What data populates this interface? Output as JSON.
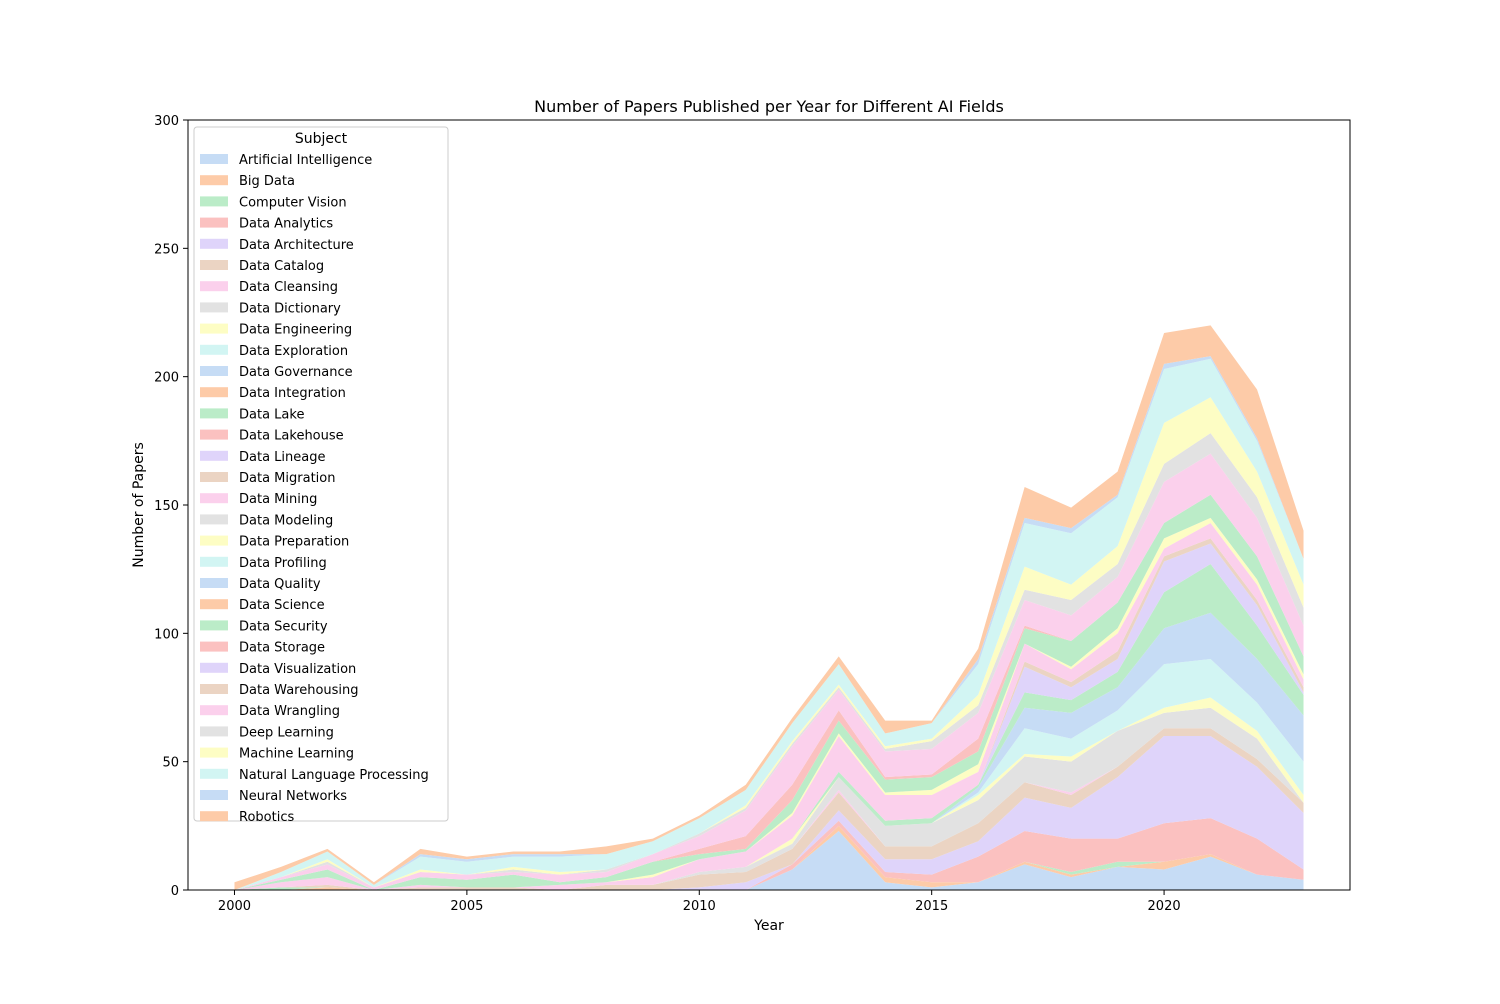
{
  "chart_data": {
    "type": "area",
    "stacked": true,
    "title": "Number of Papers Published per Year for Different AI Fields",
    "xlabel": "Year",
    "ylabel": "Number of Papers",
    "xlim": [
      1999,
      2024
    ],
    "ylim": [
      0,
      300
    ],
    "xticks": [
      2000,
      2005,
      2010,
      2015,
      2020
    ],
    "yticks": [
      0,
      50,
      100,
      150,
      200,
      250,
      300
    ],
    "grid": false,
    "legend": {
      "title": "Subject",
      "position": "upper-left"
    },
    "x": [
      2000,
      2001,
      2002,
      2003,
      2004,
      2005,
      2006,
      2007,
      2008,
      2009,
      2010,
      2011,
      2012,
      2013,
      2014,
      2015,
      2016,
      2017,
      2018,
      2019,
      2020,
      2021,
      2022,
      2023
    ],
    "series": [
      {
        "name": "Artificial Intelligence",
        "color": "#c6dcf5",
        "values": [
          0,
          0,
          0,
          0,
          0,
          0,
          0,
          0,
          0,
          0,
          0,
          0,
          8,
          23,
          3,
          1,
          3,
          10,
          5,
          9,
          8,
          13,
          6,
          4
        ]
      },
      {
        "name": "Big Data",
        "color": "#fdcba8",
        "values": [
          0,
          0,
          1,
          0,
          0,
          0,
          0,
          0,
          0,
          0,
          0,
          0,
          0,
          2,
          2,
          2,
          0,
          1,
          1,
          0,
          3,
          1,
          0,
          0
        ]
      },
      {
        "name": "Computer Vision",
        "color": "#bbecc8",
        "values": [
          0,
          1,
          0,
          0,
          0,
          0,
          0,
          0,
          0,
          0,
          0,
          0,
          0,
          0,
          0,
          0,
          0,
          0,
          1,
          2,
          0,
          0,
          0,
          0
        ]
      },
      {
        "name": "Data Analytics",
        "color": "#fbc1c0",
        "values": [
          0,
          0,
          0,
          0,
          0,
          0,
          0,
          0,
          0,
          0,
          0,
          0,
          2,
          2,
          2,
          3,
          10,
          12,
          13,
          9,
          15,
          14,
          14,
          4
        ]
      },
      {
        "name": "Data Architecture",
        "color": "#dfd4fa",
        "values": [
          0,
          0,
          0,
          0,
          0,
          0,
          0,
          0,
          0,
          0,
          1,
          3,
          0,
          4,
          5,
          6,
          6,
          13,
          12,
          24,
          34,
          32,
          28,
          22
        ]
      },
      {
        "name": "Data Catalog",
        "color": "#ebd4c3",
        "values": [
          0,
          0,
          1,
          0,
          1,
          1,
          1,
          0,
          2,
          2,
          5,
          4,
          6,
          7,
          5,
          5,
          7,
          6,
          5,
          4,
          3,
          3,
          3,
          4
        ]
      },
      {
        "name": "Data Cleansing",
        "color": "#fbd0ec",
        "values": [
          0,
          0,
          0,
          0,
          0,
          0,
          0,
          0,
          0,
          0,
          0,
          0,
          0,
          1,
          0,
          0,
          0,
          0,
          1,
          0,
          0,
          0,
          0,
          0
        ]
      },
      {
        "name": "Data Dictionary",
        "color": "#e2e2e2",
        "values": [
          0,
          0,
          0,
          0,
          0,
          0,
          0,
          0,
          0,
          0,
          1,
          2,
          2,
          5,
          8,
          9,
          9,
          10,
          12,
          14,
          6,
          8,
          8,
          0
        ]
      },
      {
        "name": "Data Engineering",
        "color": "#fdfdc4",
        "values": [
          0,
          0,
          0,
          0,
          0,
          0,
          0,
          0,
          0,
          0,
          0,
          0,
          2,
          0,
          0,
          0,
          2,
          1,
          2,
          0,
          2,
          4,
          3,
          3
        ]
      },
      {
        "name": "Data Exploration",
        "color": "#d2f5f3",
        "values": [
          0,
          0,
          0,
          0,
          0,
          0,
          0,
          0,
          0,
          0,
          0,
          0,
          0,
          0,
          0,
          0,
          1,
          10,
          7,
          8,
          17,
          15,
          11,
          13
        ]
      },
      {
        "name": "Data Governance",
        "color": "#c6dcf5",
        "values": [
          0,
          0,
          0,
          0,
          0,
          0,
          0,
          0,
          0,
          0,
          0,
          0,
          0,
          0,
          0,
          0,
          2,
          8,
          10,
          9,
          14,
          18,
          17,
          18
        ]
      },
      {
        "name": "Data Integration",
        "color": "#fdcba8",
        "values": [
          0,
          0,
          0,
          0,
          0,
          0,
          0,
          0,
          0,
          0,
          0,
          0,
          0,
          0,
          0,
          0,
          0,
          0,
          0,
          0,
          0,
          0,
          0,
          0
        ]
      },
      {
        "name": "Data Lake",
        "color": "#bbecc8",
        "values": [
          0,
          0,
          0,
          0,
          0,
          0,
          0,
          0,
          0,
          0,
          0,
          0,
          0,
          2,
          2,
          2,
          1,
          6,
          5,
          6,
          14,
          19,
          13,
          8
        ]
      },
      {
        "name": "Data Lakehouse",
        "color": "#fbc1c0",
        "values": [
          0,
          0,
          0,
          0,
          0,
          0,
          0,
          0,
          0,
          0,
          0,
          0,
          0,
          0,
          0,
          0,
          0,
          0,
          0,
          0,
          0,
          0,
          0,
          0
        ]
      },
      {
        "name": "Data Lineage",
        "color": "#dfd4fa",
        "values": [
          0,
          0,
          0,
          0,
          0,
          0,
          0,
          0,
          0,
          0,
          0,
          0,
          0,
          0,
          0,
          0,
          0,
          10,
          5,
          5,
          12,
          8,
          8,
          1
        ]
      },
      {
        "name": "Data Migration",
        "color": "#ebd4c3",
        "values": [
          0,
          0,
          0,
          0,
          0,
          0,
          0,
          0,
          0,
          0,
          0,
          0,
          0,
          0,
          0,
          0,
          0,
          2,
          2,
          3,
          2,
          2,
          2,
          2
        ]
      },
      {
        "name": "Data Mining",
        "color": "#fbd0ec",
        "values": [
          0,
          2,
          3,
          0,
          1,
          0,
          0,
          2,
          1,
          3,
          5,
          6,
          9,
          14,
          10,
          9,
          5,
          7,
          5,
          7,
          3,
          6,
          6,
          3
        ]
      },
      {
        "name": "Data Modeling",
        "color": "#e2e2e2",
        "values": [
          0,
          0,
          0,
          0,
          0,
          0,
          0,
          0,
          0,
          0,
          0,
          0,
          0,
          0,
          0,
          0,
          0,
          0,
          0,
          0,
          0,
          0,
          0,
          0
        ]
      },
      {
        "name": "Data Preparation",
        "color": "#fdfdc4",
        "values": [
          0,
          0,
          0,
          0,
          0,
          0,
          0,
          0,
          0,
          1,
          0,
          0,
          1,
          1,
          1,
          2,
          3,
          0,
          1,
          2,
          4,
          2,
          2,
          2
        ]
      },
      {
        "name": "Data Profiling",
        "color": "#d2f5f3",
        "values": [
          0,
          0,
          0,
          0,
          0,
          0,
          0,
          0,
          0,
          0,
          0,
          0,
          0,
          0,
          0,
          0,
          0,
          0,
          0,
          0,
          0,
          0,
          0,
          0
        ]
      },
      {
        "name": "Data Quality",
        "color": "#c6dcf5",
        "values": [
          0,
          0,
          0,
          0,
          0,
          0,
          0,
          0,
          0,
          0,
          0,
          0,
          0,
          0,
          0,
          0,
          0,
          0,
          0,
          0,
          0,
          0,
          0,
          0
        ]
      },
      {
        "name": "Data Science",
        "color": "#fdcba8",
        "values": [
          0,
          0,
          0,
          0,
          0,
          0,
          0,
          0,
          0,
          0,
          0,
          0,
          0,
          0,
          0,
          0,
          0,
          0,
          0,
          0,
          0,
          0,
          0,
          0
        ]
      },
      {
        "name": "Data Security",
        "color": "#bbecc8",
        "values": [
          0,
          1,
          3,
          0,
          3,
          3,
          5,
          1,
          2,
          5,
          2,
          1,
          5,
          5,
          5,
          5,
          5,
          6,
          10,
          10,
          6,
          9,
          9,
          7
        ]
      },
      {
        "name": "Data Storage",
        "color": "#fbc1c0",
        "values": [
          0,
          0,
          0,
          0,
          0,
          0,
          0,
          0,
          0,
          0,
          2,
          5,
          6,
          4,
          1,
          1,
          5,
          1,
          0,
          0,
          0,
          0,
          0,
          0
        ]
      },
      {
        "name": "Data Visualization",
        "color": "#dfd4fa",
        "values": [
          0,
          0,
          0,
          0,
          0,
          0,
          0,
          0,
          0,
          0,
          0,
          0,
          0,
          0,
          0,
          0,
          0,
          0,
          0,
          0,
          0,
          0,
          0,
          0
        ]
      },
      {
        "name": "Data Warehousing",
        "color": "#ebd4c3",
        "values": [
          0,
          0,
          0,
          0,
          0,
          0,
          0,
          0,
          0,
          0,
          0,
          0,
          0,
          0,
          0,
          0,
          0,
          0,
          0,
          0,
          0,
          0,
          0,
          0
        ]
      },
      {
        "name": "Data Wrangling",
        "color": "#fbd0ec",
        "values": [
          0,
          1,
          2,
          1,
          2,
          2,
          1,
          3,
          2,
          3,
          5,
          10,
          15,
          8,
          10,
          10,
          10,
          10,
          10,
          10,
          16,
          16,
          15,
          12
        ]
      },
      {
        "name": "Deep Learning",
        "color": "#e2e2e2",
        "values": [
          0,
          0,
          1,
          0,
          0,
          0,
          1,
          0,
          1,
          0,
          1,
          1,
          1,
          1,
          1,
          3,
          3,
          4,
          6,
          5,
          7,
          8,
          8,
          7
        ]
      },
      {
        "name": "Machine Learning",
        "color": "#fdfdc4",
        "values": [
          0,
          0,
          1,
          0,
          1,
          0,
          1,
          1,
          0,
          0,
          0,
          1,
          1,
          1,
          1,
          1,
          4,
          9,
          6,
          7,
          16,
          14,
          10,
          9
        ]
      },
      {
        "name": "Natural Language Processing",
        "color": "#d2f5f3",
        "values": [
          0,
          2,
          3,
          1,
          5,
          5,
          4,
          6,
          6,
          5,
          6,
          6,
          7,
          8,
          5,
          6,
          12,
          17,
          20,
          19,
          21,
          15,
          12,
          10
        ]
      },
      {
        "name": "Neural Networks",
        "color": "#c6dcf5",
        "values": [
          0,
          0,
          0,
          0,
          1,
          1,
          1,
          1,
          0,
          0,
          0,
          0,
          0,
          0,
          0,
          0,
          2,
          2,
          2,
          1,
          2,
          1,
          1,
          0
        ]
      },
      {
        "name": "Robotics",
        "color": "#fdcba8",
        "values": [
          3,
          2,
          1,
          1,
          2,
          1,
          1,
          1,
          3,
          1,
          1,
          2,
          2,
          3,
          5,
          1,
          4,
          12,
          8,
          9,
          12,
          12,
          19,
          11
        ]
      }
    ]
  }
}
